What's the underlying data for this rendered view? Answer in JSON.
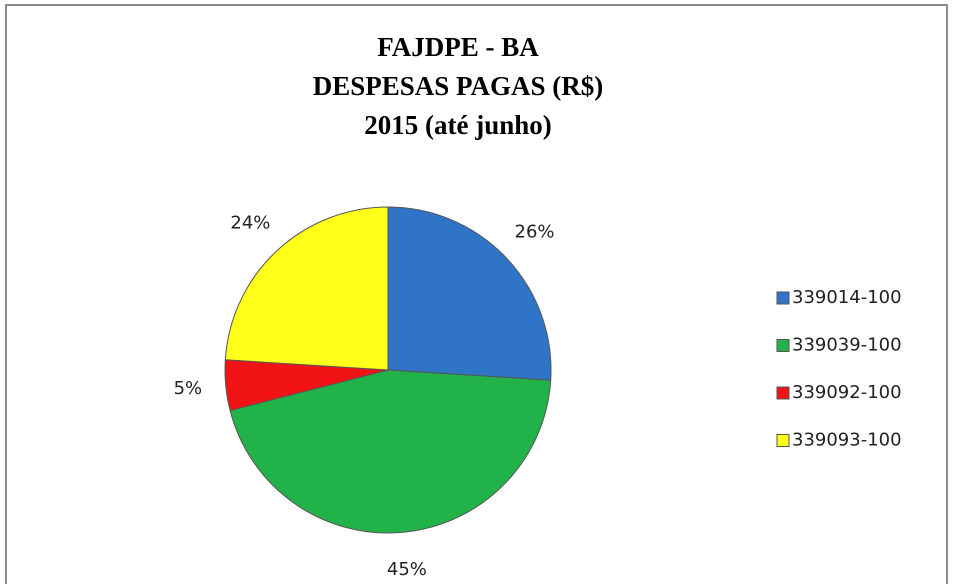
{
  "chart_data": {
    "type": "pie",
    "title": [
      "FAJDPE - BA",
      "DESPESAS PAGAS (R$)",
      "2015 (até junho)"
    ],
    "categories": [
      "339014-100",
      "339039-100",
      "339092-100",
      "339093-100"
    ],
    "values": [
      26,
      45,
      5,
      24
    ],
    "value_labels": [
      "26%",
      "45%",
      "5%",
      "24%"
    ],
    "colors": [
      "#2f74c6",
      "#22b24a",
      "#f21414",
      "#ffff1a"
    ],
    "legend": "right"
  }
}
